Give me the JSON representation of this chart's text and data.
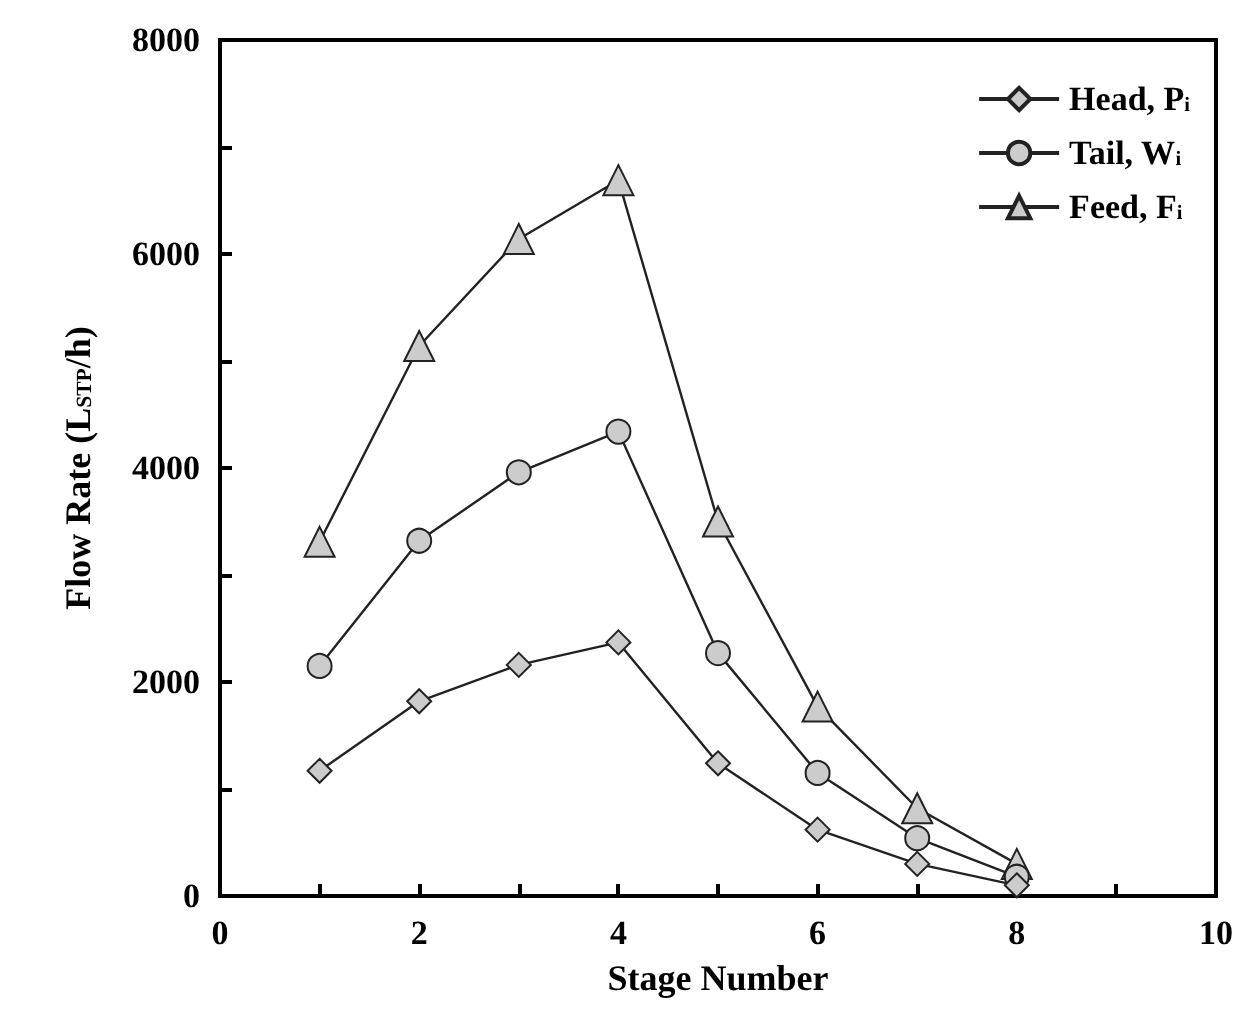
{
  "chart_data": {
    "type": "line",
    "xlabel": "Stage Number",
    "ylabel": "Flow Rate (L$_{STP}$/h)",
    "x": [
      1,
      2,
      3,
      4,
      5,
      6,
      7,
      8
    ],
    "series": [
      {
        "name": "Head, P$_{i}$",
        "color": "#cccccc",
        "marker": "diamond",
        "values": [
          1170,
          1820,
          2160,
          2370,
          1240,
          620,
          300,
          100
        ]
      },
      {
        "name": "Tail, W$_{i}$",
        "color": "#cccccc",
        "marker": "circle",
        "values": [
          2150,
          3320,
          3960,
          4340,
          2270,
          1150,
          540,
          180
        ]
      },
      {
        "name": "Feed, F$_{i}$",
        "color": "#cccccc",
        "marker": "triangle",
        "values": [
          3310,
          5140,
          6140,
          6690,
          3500,
          1770,
          820,
          300
        ]
      }
    ],
    "xlim": [
      0,
      10
    ],
    "xticks": [
      0,
      {
        "value": 1,
        "label": null
      },
      2,
      {
        "value": 3,
        "label": null
      },
      4,
      {
        "value": 5,
        "label": null
      },
      6,
      {
        "value": 7,
        "label": null
      },
      8,
      {
        "value": 9,
        "label": null
      },
      10
    ],
    "ylim": [
      0,
      8000
    ],
    "yticks": [
      0,
      {
        "value": 1000,
        "label": null
      },
      2000,
      {
        "value": 3000,
        "label": null
      },
      4000,
      {
        "value": 5000,
        "label": null
      },
      6000,
      {
        "value": 7000,
        "label": null
      },
      8000
    ],
    "grid": false,
    "legend": "top right",
    "line_style": "solid"
  }
}
